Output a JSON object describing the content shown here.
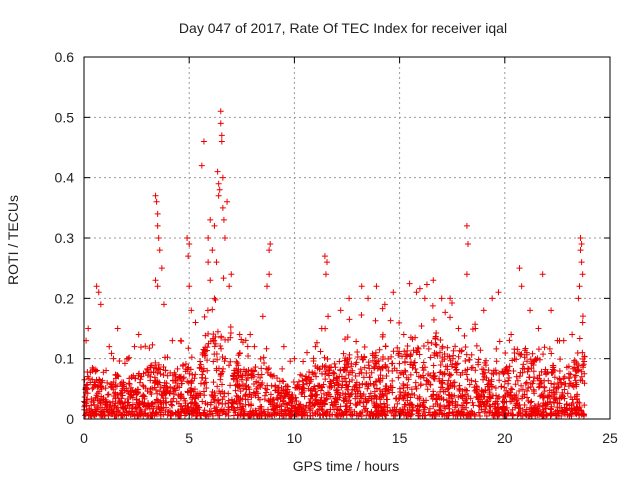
{
  "chart_data": {
    "type": "scatter",
    "title": "Day 047 of 2017, Rate Of TEC Index for receiver iqal",
    "xlabel": "GPS time / hours",
    "ylabel": "ROTI / TECUs",
    "xlim": [
      0,
      25
    ],
    "ylim": [
      0,
      0.6
    ],
    "xticks": [
      "0",
      "5",
      "10",
      "15",
      "20",
      "25"
    ],
    "yticks": [
      "0",
      "0.1",
      "0.2",
      "0.3",
      "0.4",
      "0.5",
      "0.6"
    ],
    "grid": true,
    "marker": "+",
    "color": "#ee0000",
    "series": [
      {
        "name": "ROTI",
        "points": [
          [
            0.1,
            0.13
          ],
          [
            0.2,
            0.15
          ],
          [
            0.6,
            0.22
          ],
          [
            0.7,
            0.21
          ],
          [
            0.8,
            0.19
          ],
          [
            1.2,
            0.12
          ],
          [
            1.6,
            0.15
          ],
          [
            2.1,
            0.1
          ],
          [
            2.4,
            0.12
          ],
          [
            2.6,
            0.14
          ],
          [
            3.4,
            0.37
          ],
          [
            3.45,
            0.36
          ],
          [
            3.5,
            0.34
          ],
          [
            3.5,
            0.32
          ],
          [
            3.55,
            0.3
          ],
          [
            3.6,
            0.28
          ],
          [
            3.4,
            0.23
          ],
          [
            3.5,
            0.22
          ],
          [
            3.7,
            0.25
          ],
          [
            3.8,
            0.19
          ],
          [
            4.2,
            0.13
          ],
          [
            4.6,
            0.13
          ],
          [
            4.9,
            0.3
          ],
          [
            5.0,
            0.29
          ],
          [
            4.95,
            0.27
          ],
          [
            5.0,
            0.22
          ],
          [
            5.1,
            0.18
          ],
          [
            5.3,
            0.16
          ],
          [
            5.6,
            0.42
          ],
          [
            5.7,
            0.46
          ],
          [
            5.9,
            0.3
          ],
          [
            5.9,
            0.26
          ],
          [
            6.0,
            0.33
          ],
          [
            6.0,
            0.23
          ],
          [
            6.1,
            0.28
          ],
          [
            6.2,
            0.32
          ],
          [
            6.2,
            0.2
          ],
          [
            6.3,
            0.26
          ],
          [
            6.35,
            0.41
          ],
          [
            6.4,
            0.39
          ],
          [
            6.4,
            0.37
          ],
          [
            6.45,
            0.38
          ],
          [
            6.5,
            0.51
          ],
          [
            6.5,
            0.49
          ],
          [
            6.55,
            0.47
          ],
          [
            6.55,
            0.46
          ],
          [
            6.6,
            0.4
          ],
          [
            6.6,
            0.35
          ],
          [
            6.65,
            0.33
          ],
          [
            6.7,
            0.3
          ],
          [
            6.8,
            0.36
          ],
          [
            6.9,
            0.22
          ],
          [
            7.0,
            0.24
          ],
          [
            7.4,
            0.14
          ],
          [
            7.9,
            0.14
          ],
          [
            8.1,
            0.12
          ],
          [
            8.5,
            0.17
          ],
          [
            8.7,
            0.22
          ],
          [
            8.8,
            0.28
          ],
          [
            8.85,
            0.29
          ],
          [
            8.8,
            0.24
          ],
          [
            9.5,
            0.12
          ],
          [
            10.0,
            0.1
          ],
          [
            10.6,
            0.11
          ],
          [
            11.0,
            0.12
          ],
          [
            11.3,
            0.15
          ],
          [
            11.45,
            0.27
          ],
          [
            11.55,
            0.26
          ],
          [
            11.5,
            0.24
          ],
          [
            11.6,
            0.17
          ],
          [
            12.2,
            0.18
          ],
          [
            12.6,
            0.2
          ],
          [
            13.2,
            0.22
          ],
          [
            13.5,
            0.2
          ],
          [
            13.9,
            0.22
          ],
          [
            14.3,
            0.19
          ],
          [
            14.7,
            0.21
          ],
          [
            15.2,
            0.14
          ],
          [
            15.8,
            0.21
          ],
          [
            16.2,
            0.2
          ],
          [
            16.6,
            0.23
          ],
          [
            17.0,
            0.2
          ],
          [
            17.4,
            0.2
          ],
          [
            17.8,
            0.15
          ],
          [
            18.2,
            0.32
          ],
          [
            18.25,
            0.29
          ],
          [
            18.2,
            0.24
          ],
          [
            18.6,
            0.15
          ],
          [
            19.0,
            0.18
          ],
          [
            19.4,
            0.2
          ],
          [
            19.7,
            0.21
          ],
          [
            20.3,
            0.14
          ],
          [
            20.7,
            0.25
          ],
          [
            20.8,
            0.22
          ],
          [
            21.2,
            0.18
          ],
          [
            21.6,
            0.15
          ],
          [
            21.8,
            0.24
          ],
          [
            22.2,
            0.18
          ],
          [
            22.8,
            0.13
          ],
          [
            23.2,
            0.14
          ],
          [
            23.5,
            0.2
          ],
          [
            23.55,
            0.22
          ],
          [
            23.6,
            0.28
          ],
          [
            23.6,
            0.3
          ],
          [
            23.65,
            0.29
          ],
          [
            23.65,
            0.26
          ],
          [
            23.7,
            0.24
          ],
          [
            23.7,
            0.16
          ]
        ],
        "envelope": [
          [
            0,
            0.07
          ],
          [
            0.5,
            0.08
          ],
          [
            1,
            0.06
          ],
          [
            1.5,
            0.07
          ],
          [
            2,
            0.06
          ],
          [
            2.5,
            0.07
          ],
          [
            3,
            0.08
          ],
          [
            3.5,
            0.1
          ],
          [
            4,
            0.07
          ],
          [
            4.5,
            0.08
          ],
          [
            5,
            0.09
          ],
          [
            5.5,
            0.1
          ],
          [
            6,
            0.13
          ],
          [
            6.5,
            0.16
          ],
          [
            7,
            0.1
          ],
          [
            7.5,
            0.08
          ],
          [
            8,
            0.08
          ],
          [
            8.5,
            0.1
          ],
          [
            9,
            0.07
          ],
          [
            9.5,
            0.06
          ],
          [
            10,
            0.06
          ],
          [
            10.5,
            0.07
          ],
          [
            11,
            0.08
          ],
          [
            11.5,
            0.1
          ],
          [
            12,
            0.09
          ],
          [
            12.5,
            0.1
          ],
          [
            13,
            0.11
          ],
          [
            13.5,
            0.1
          ],
          [
            14,
            0.11
          ],
          [
            14.5,
            0.12
          ],
          [
            15,
            0.12
          ],
          [
            15.5,
            0.14
          ],
          [
            16,
            0.15
          ],
          [
            16.5,
            0.14
          ],
          [
            17,
            0.13
          ],
          [
            17.5,
            0.12
          ],
          [
            18,
            0.11
          ],
          [
            18.5,
            0.1
          ],
          [
            19,
            0.09
          ],
          [
            19.5,
            0.08
          ],
          [
            20,
            0.08
          ],
          [
            20.5,
            0.1
          ],
          [
            21,
            0.11
          ],
          [
            21.5,
            0.1
          ],
          [
            22,
            0.09
          ],
          [
            22.5,
            0.08
          ],
          [
            23,
            0.09
          ],
          [
            23.5,
            0.12
          ],
          [
            23.8,
            0.1
          ]
        ]
      }
    ]
  }
}
